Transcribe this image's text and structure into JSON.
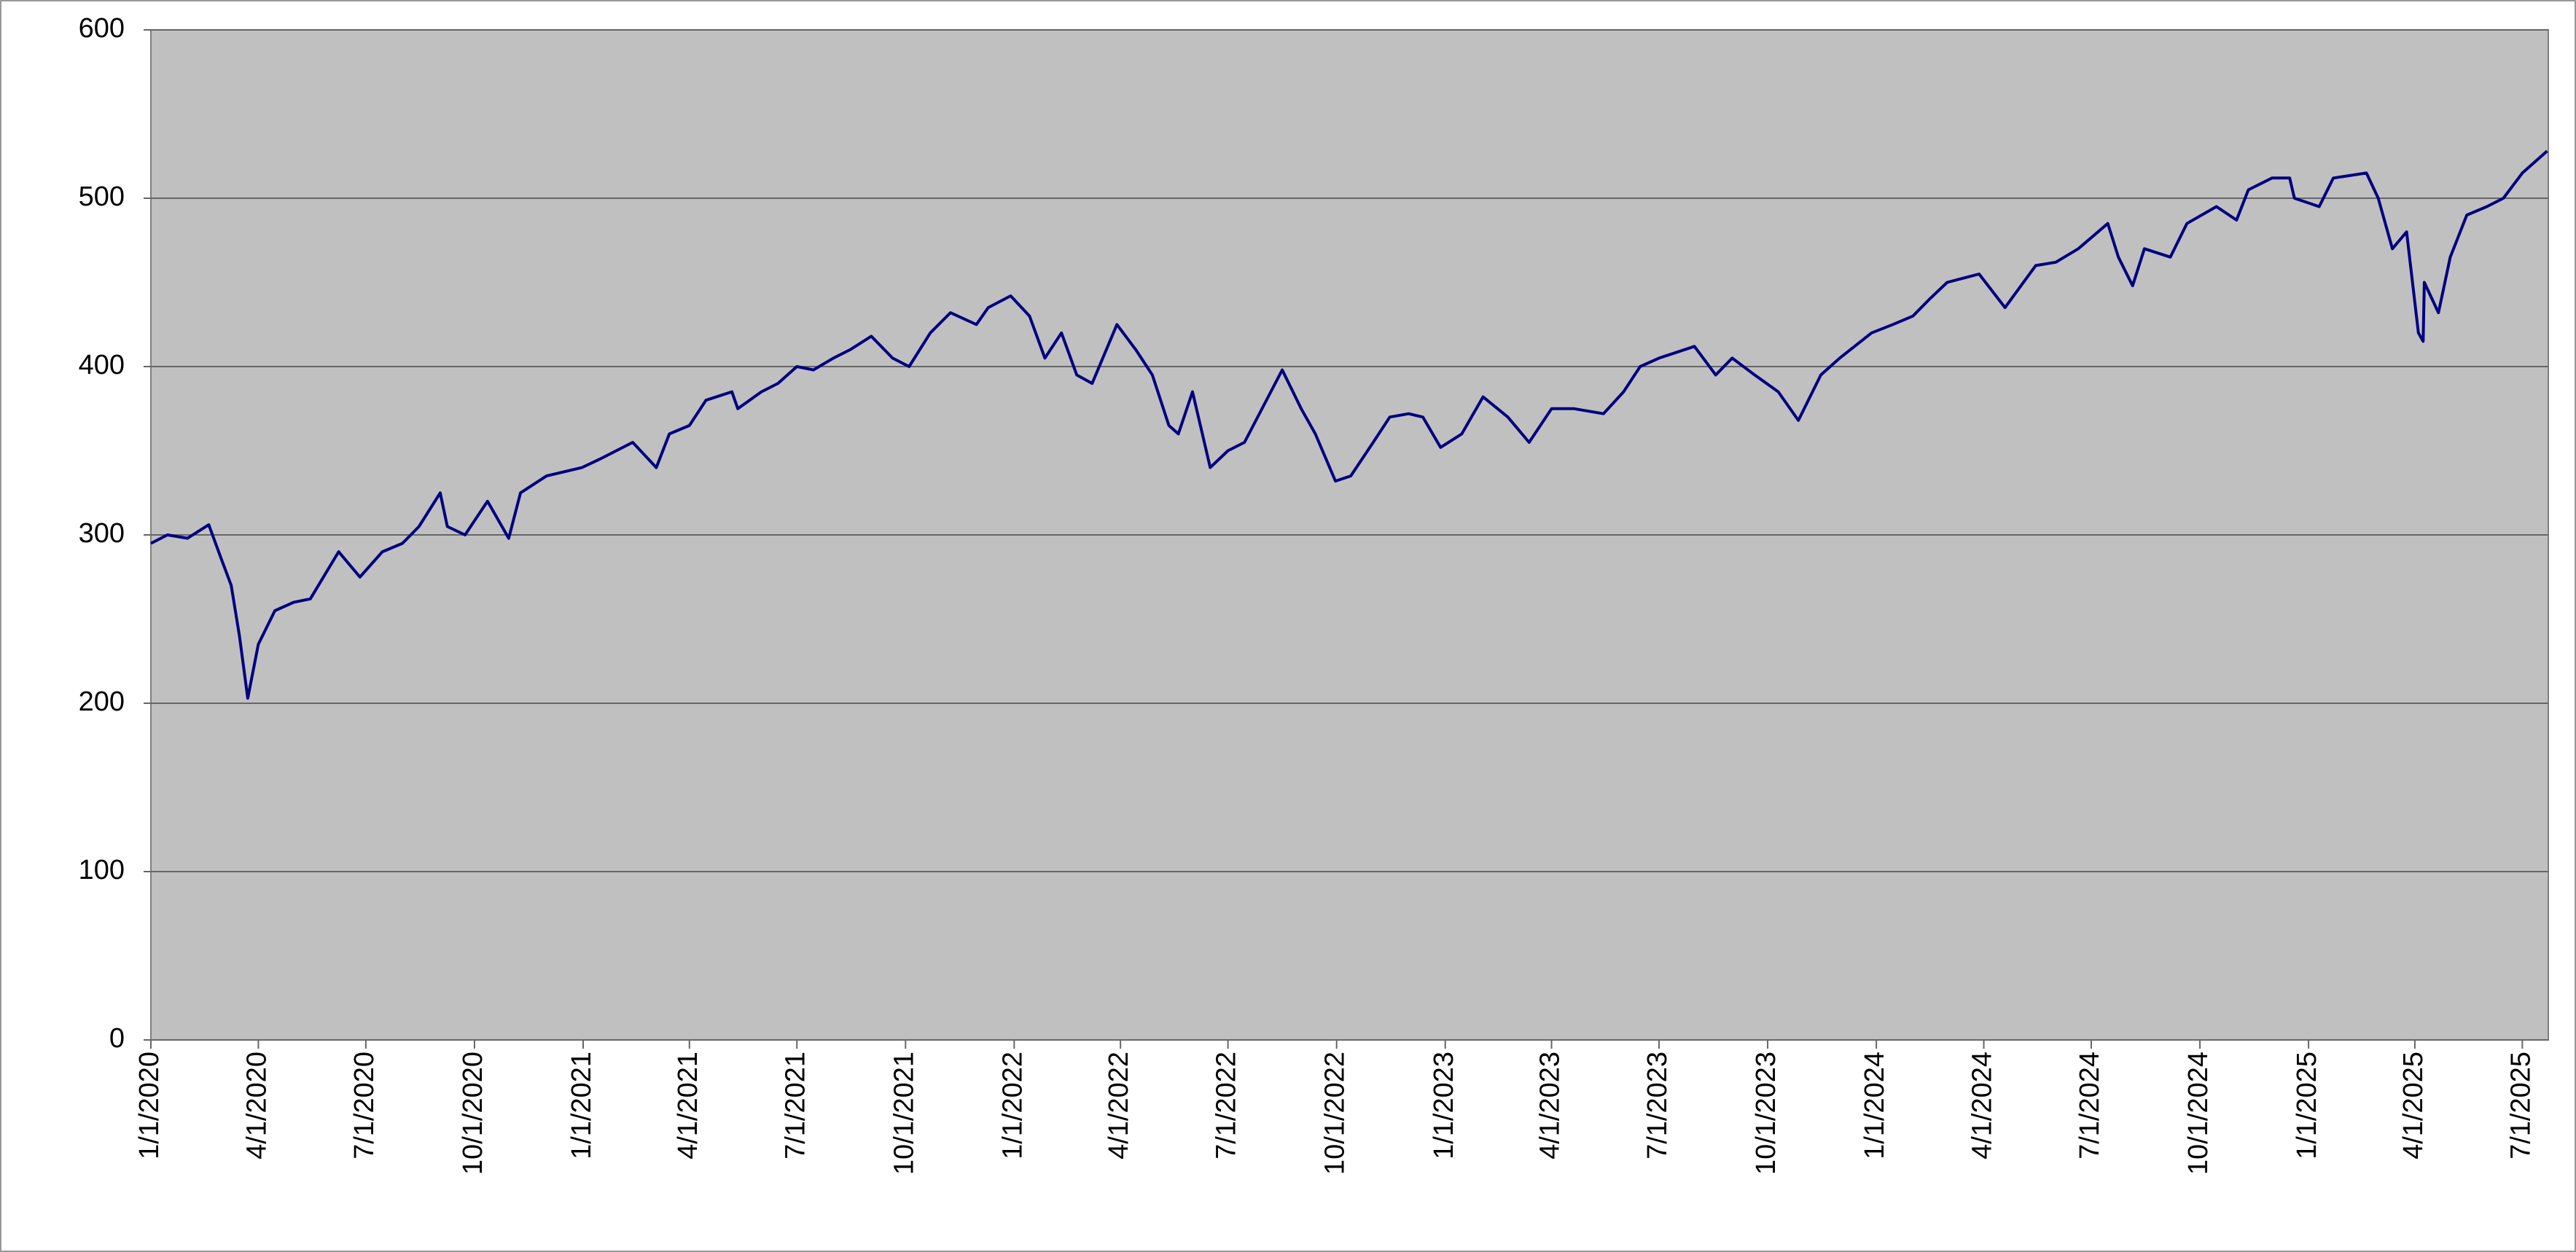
{
  "chart_data": {
    "type": "line",
    "color": "#000080",
    "x": [
      "1/1/2020",
      "1/15/2020",
      "2/1/2020",
      "2/19/2020",
      "3/1/2020",
      "3/9/2020",
      "3/16/2020",
      "3/23/2020",
      "4/1/2020",
      "4/15/2020",
      "5/1/2020",
      "5/15/2020",
      "6/8/2020",
      "6/26/2020",
      "7/15/2020",
      "8/1/2020",
      "8/15/2020",
      "9/2/2020",
      "9/8/2020",
      "9/23/2020",
      "10/12/2020",
      "10/30/2020",
      "11/9/2020",
      "12/1/2020",
      "12/31/2020",
      "1/15/2021",
      "2/12/2021",
      "3/4/2021",
      "3/15/2021",
      "4/1/2021",
      "4/15/2021",
      "5/7/2021",
      "5/12/2021",
      "6/1/2021",
      "6/15/2021",
      "7/1/2021",
      "7/15/2021",
      "8/1/2021",
      "8/15/2021",
      "9/2/2021",
      "9/20/2021",
      "10/4/2021",
      "10/22/2021",
      "11/8/2021",
      "11/30/2021",
      "12/10/2021",
      "12/29/2021",
      "1/14/2022",
      "1/27/2022",
      "2/10/2022",
      "2/23/2022",
      "3/8/2022",
      "3/29/2022",
      "4/14/2022",
      "4/28/2022",
      "5/12/2022",
      "5/20/2022",
      "6/1/2022",
      "6/16/2022",
      "7/1/2022",
      "7/15/2022",
      "8/16/2022",
      "9/1/2022",
      "9/13/2022",
      "9/30/2022",
      "10/13/2022",
      "11/1/2022",
      "11/15/2022",
      "12/1/2022",
      "12/13/2022",
      "12/28/2022",
      "1/15/2023",
      "2/2/2023",
      "2/23/2023",
      "3/13/2023",
      "4/1/2023",
      "4/20/2023",
      "5/15/2023",
      "6/1/2023",
      "6/15/2023",
      "7/1/2023",
      "7/31/2023",
      "8/18/2023",
      "9/1/2023",
      "9/20/2023",
      "10/10/2023",
      "10/27/2023",
      "11/15/2023",
      "12/1/2023",
      "12/28/2023",
      "1/15/2024",
      "2/1/2024",
      "2/15/2024",
      "3/1/2024",
      "3/28/2024",
      "4/19/2024",
      "5/15/2024",
      "6/1/2024",
      "6/20/2024",
      "7/15/2024",
      "7/24/2024",
      "8/5/2024",
      "8/15/2024",
      "9/6/2024",
      "9/20/2024",
      "10/15/2024",
      "11/1/2024",
      "11/11/2024",
      "12/1/2024",
      "12/16/2024",
      "12/20/2024",
      "1/10/2025",
      "1/22/2025",
      "2/19/2025",
      "3/1/2025",
      "3/13/2025",
      "3/25/2025",
      "4/4/2025",
      "4/8/2025",
      "4/9/2025",
      "4/21/2025",
      "5/1/2025",
      "5/15/2025",
      "6/1/2025",
      "6/15/2025",
      "7/1/2025",
      "7/22/2025"
    ],
    "values": [
      295,
      300,
      298,
      306,
      285,
      270,
      240,
      203,
      235,
      255,
      260,
      262,
      290,
      275,
      290,
      295,
      305,
      325,
      305,
      300,
      320,
      298,
      325,
      335,
      340,
      345,
      355,
      340,
      360,
      365,
      380,
      385,
      375,
      385,
      390,
      400,
      398,
      405,
      410,
      418,
      405,
      400,
      420,
      432,
      425,
      435,
      442,
      430,
      405,
      420,
      395,
      390,
      425,
      410,
      395,
      365,
      360,
      385,
      340,
      350,
      355,
      398,
      375,
      360,
      332,
      335,
      355,
      370,
      372,
      370,
      352,
      360,
      382,
      370,
      355,
      375,
      375,
      372,
      385,
      400,
      405,
      412,
      395,
      405,
      395,
      385,
      368,
      395,
      405,
      420,
      425,
      430,
      440,
      450,
      455,
      435,
      460,
      462,
      470,
      485,
      465,
      448,
      470,
      465,
      485,
      495,
      487,
      505,
      512,
      512,
      500,
      495,
      512,
      515,
      500,
      470,
      480,
      420,
      415,
      450,
      432,
      465,
      490,
      495,
      500,
      515,
      528
    ],
    "xlim": [
      "1/1/2020",
      "7/23/2025"
    ],
    "xticks": [
      "1/1/2020",
      "4/1/2020",
      "7/1/2020",
      "10/1/2020",
      "1/1/2021",
      "4/1/2021",
      "7/1/2021",
      "10/1/2021",
      "1/1/2022",
      "4/1/2022",
      "7/1/2022",
      "10/1/2022",
      "1/1/2023",
      "4/1/2023",
      "7/1/2023",
      "10/1/2023",
      "1/1/2024",
      "4/1/2024",
      "7/1/2024",
      "10/1/2024",
      "1/1/2025",
      "4/1/2025",
      "7/1/2025"
    ],
    "ylim": [
      0,
      600
    ],
    "yticks": [
      0,
      100,
      200,
      300,
      400,
      500,
      600
    ],
    "grid": true
  }
}
